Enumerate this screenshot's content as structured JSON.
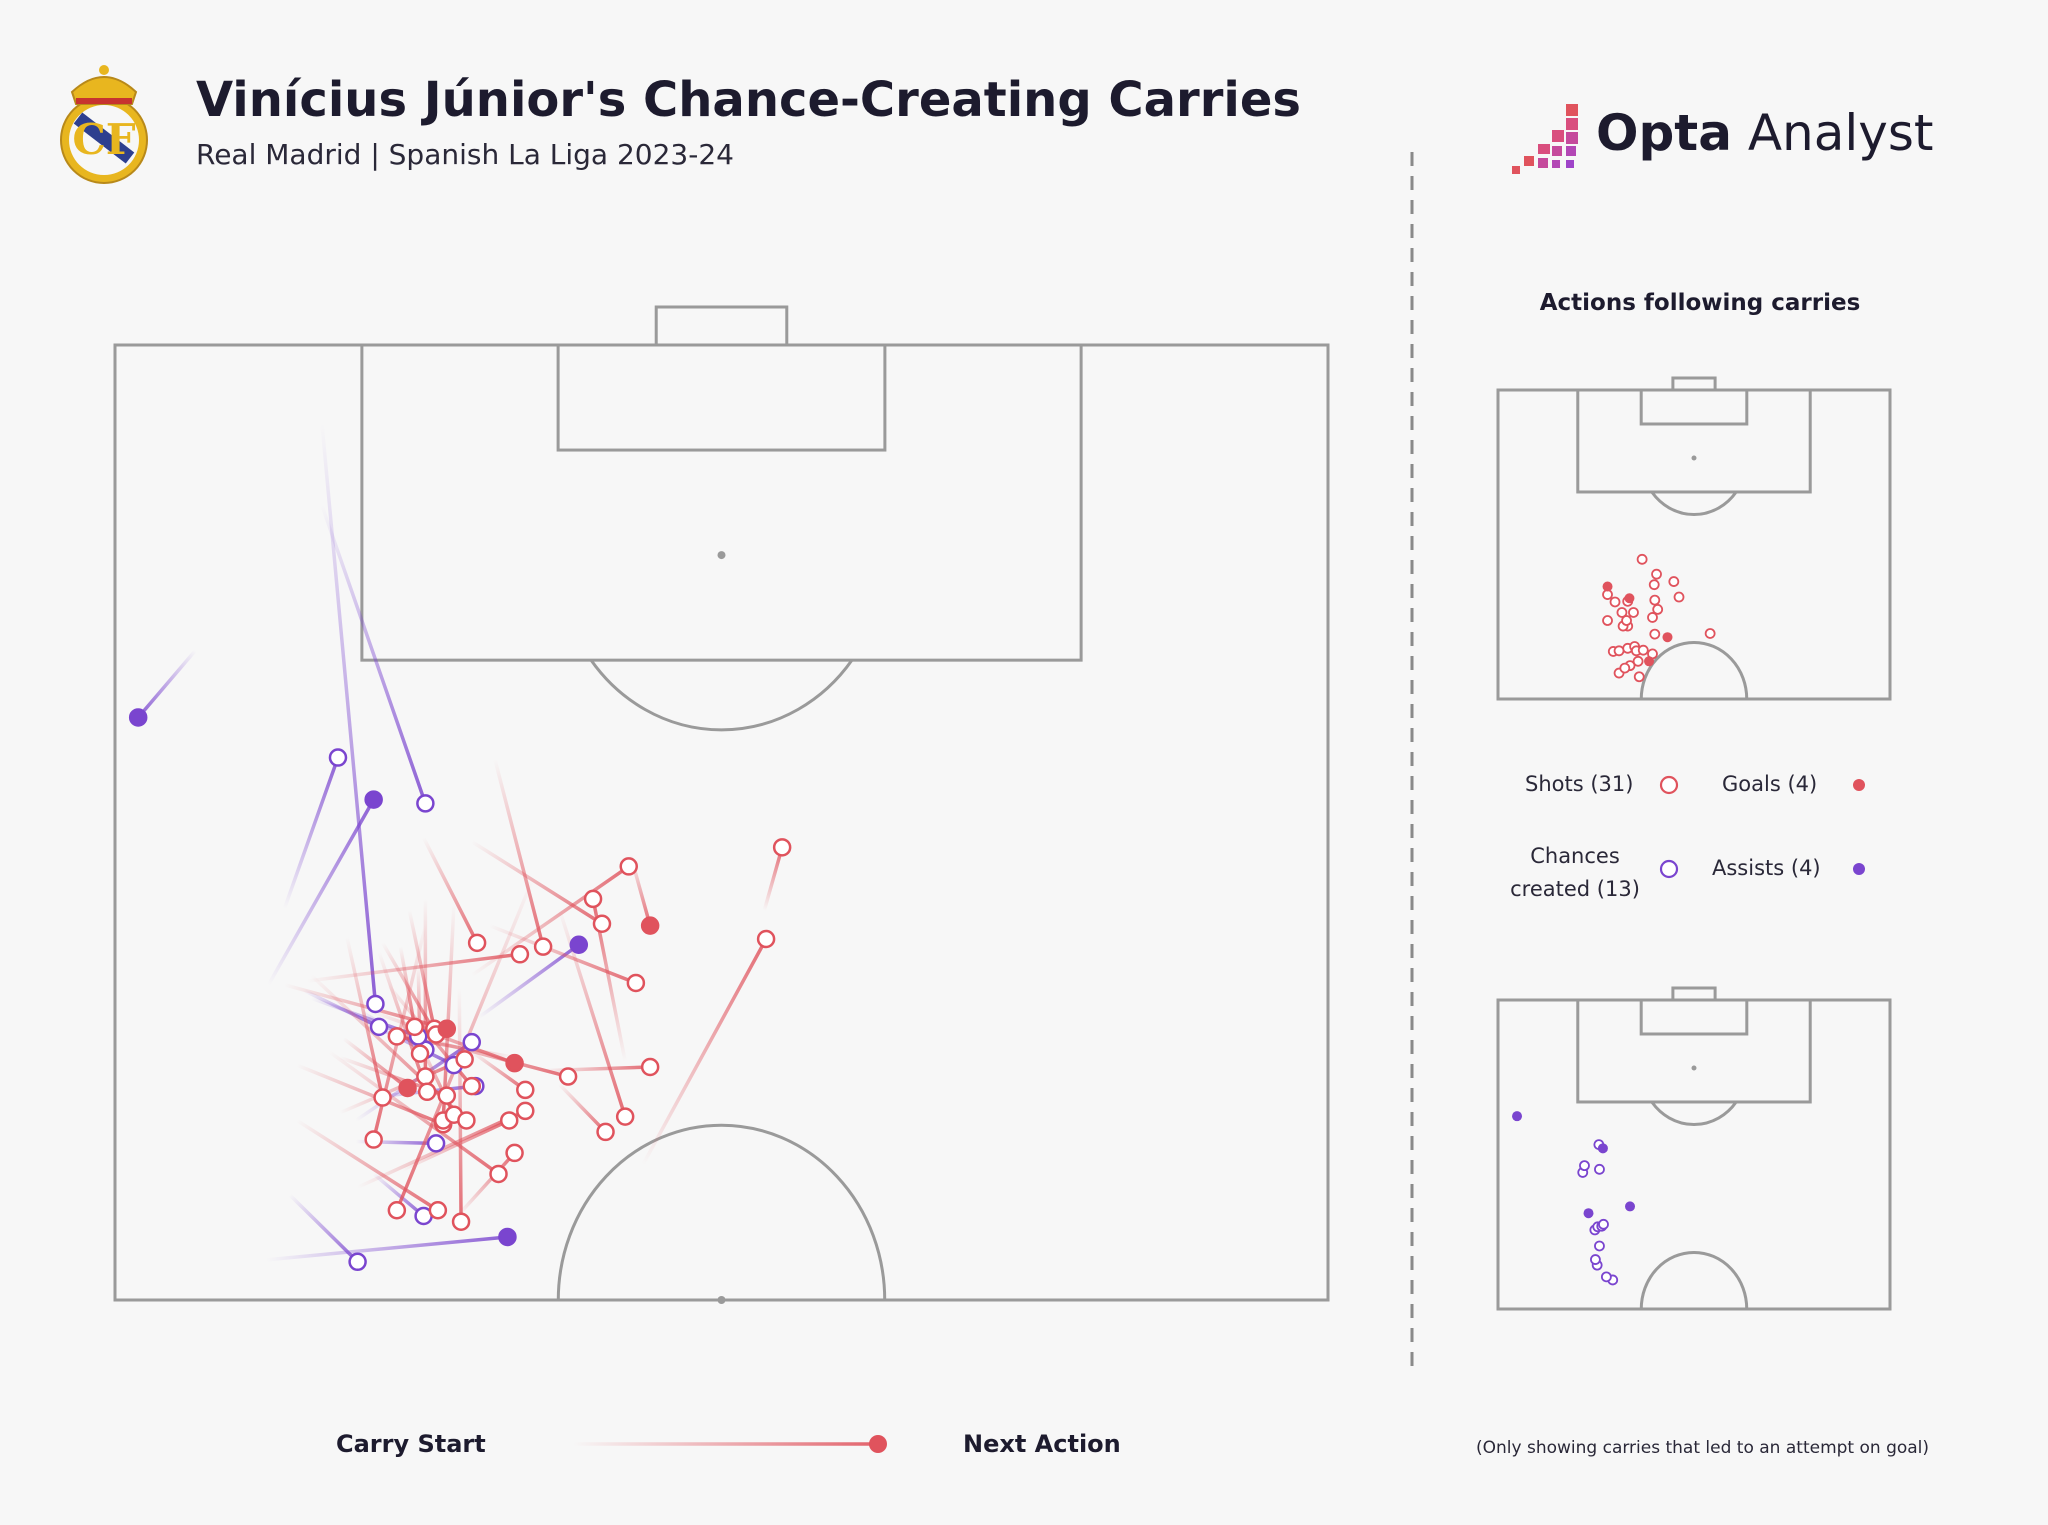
{
  "title": "Vinícius Júnior's Chance-Creating Carries",
  "subtitle": "Real Madrid | Spanish La Liga 2023-24",
  "brand": {
    "opta": "Opta",
    "analyst": "Analyst"
  },
  "colors": {
    "shot": "#e0535d",
    "assist": "#7a45cf",
    "pitch_line": "#9a9a9a",
    "background": "#f7f7f7"
  },
  "side": {
    "title": "Actions following carries",
    "legend": {
      "shots": "Shots (31)",
      "goals": "Goals (4)",
      "chances": "Chances created (13)",
      "assists": "Assists (4)"
    }
  },
  "legend": {
    "carry_start": "Carry Start",
    "next_action": "Next Action"
  },
  "footnote": "(Only showing carries that led to an attempt on goal)",
  "chart_data": {
    "type": "scatter",
    "pitch": {
      "length": 50,
      "width": 68,
      "attacking": "up"
    },
    "carries": [
      {
        "type": "assist",
        "sx": 8.6,
        "sy": 33.5,
        "ex": 14.5,
        "ey": 23.8
      },
      {
        "type": "assist",
        "sx": 11.6,
        "sy": 4.1,
        "ex": 14.6,
        "ey": 34.5
      },
      {
        "type": "assist",
        "sx": 11.6,
        "sy": 8.4,
        "ex": 17.4,
        "ey": 24.0
      },
      {
        "type": "assist",
        "sx": 9.8,
        "sy": 44.5,
        "ex": 13.6,
        "ey": 48.0
      },
      {
        "type": "assist",
        "sx": 20.4,
        "sy": 35.2,
        "ex": 26.0,
        "ey": 31.4
      },
      {
        "type": "assist",
        "sx": 4.5,
        "sy": 16.0,
        "ex": 1.3,
        "ey": 19.5
      },
      {
        "type": "assist",
        "sx": 13.8,
        "sy": 34.9,
        "ex": 17.4,
        "ey": 36.9
      },
      {
        "type": "assist",
        "sx": 8.5,
        "sy": 47.9,
        "ex": 22.0,
        "ey": 46.7
      },
      {
        "type": "assist",
        "sx": 13.5,
        "sy": 40.6,
        "ex": 20.0,
        "ey": 36.5
      },
      {
        "type": "assist",
        "sx": 14.3,
        "sy": 39.4,
        "ex": 20.2,
        "ey": 38.8
      },
      {
        "type": "assist",
        "sx": 13.5,
        "sy": 41.7,
        "ex": 18.0,
        "ey": 41.8
      },
      {
        "type": "assist",
        "sx": 14.0,
        "sy": 35.4,
        "ex": 19.0,
        "ey": 37.7
      },
      {
        "type": "assist",
        "sx": 14.5,
        "sy": 43.4,
        "ex": 17.3,
        "ey": 45.6
      },
      {
        "type": "assist",
        "sx": 9.5,
        "sy": 29.5,
        "ex": 12.5,
        "ey": 21.6
      },
      {
        "type": "assist",
        "sx": 10.6,
        "sy": 33.8,
        "ex": 14.8,
        "ey": 35.7
      },
      {
        "type": "assist",
        "sx": 11.0,
        "sy": 34.2,
        "ex": 17.0,
        "ey": 36.2
      },
      {
        "type": "shot",
        "sx": 16.1,
        "sy": 43.2,
        "ex": 22.1,
        "ey": 40.6
      },
      {
        "type": "shot",
        "sx": 20.0,
        "sy": 37.0,
        "ex": 23.0,
        "ey": 39.0
      },
      {
        "type": "shot",
        "sx": 29.6,
        "sy": 42.9,
        "ex": 36.5,
        "ey": 31.1
      },
      {
        "type": "shot",
        "sx": 28.6,
        "sy": 37.5,
        "ex": 26.8,
        "ey": 29.0
      },
      {
        "type": "shot",
        "sx": 36.4,
        "sy": 29.6,
        "ex": 37.4,
        "ey": 26.3
      },
      {
        "type": "shot",
        "sx": 24.9,
        "sy": 29.5,
        "ex": 28.6,
        "ey": 40.4
      },
      {
        "type": "shot",
        "sx": 13.6,
        "sy": 44.1,
        "ex": 23.0,
        "ey": 40.1
      },
      {
        "type": "shot",
        "sx": 19.3,
        "sy": 45.5,
        "ex": 22.4,
        "ey": 42.3
      },
      {
        "type": "shot",
        "sx": 10.2,
        "sy": 37.7,
        "ex": 18.4,
        "ey": 40.8
      },
      {
        "type": "shot",
        "sx": 10.2,
        "sy": 40.6,
        "ex": 18.1,
        "ey": 45.3
      },
      {
        "type": "shot",
        "sx": 23.4,
        "sy": 28.0,
        "ex": 15.8,
        "ey": 45.3
      },
      {
        "type": "shot",
        "sx": 23.9,
        "sy": 38.0,
        "ex": 30.0,
        "ey": 37.8
      },
      {
        "type": "shot",
        "sx": 22.4,
        "sy": 37.3,
        "ex": 15.8,
        "ey": 36.2
      },
      {
        "type": "shot",
        "sx": 16.5,
        "sy": 29.6,
        "ex": 17.9,
        "ey": 35.8
      },
      {
        "type": "shot",
        "sx": 17.4,
        "sy": 29.0,
        "ex": 17.4,
        "ey": 38.3
      },
      {
        "type": "shot",
        "sx": 19.0,
        "sy": 29.3,
        "ex": 18.4,
        "ey": 40.6
      },
      {
        "type": "shot",
        "sx": 17.0,
        "sy": 32.5,
        "ex": 17.1,
        "ey": 37.1
      },
      {
        "type": "shot",
        "sx": 15.0,
        "sy": 31.3,
        "ex": 18.0,
        "ey": 36.1
      },
      {
        "type": "shot",
        "sx": 17.0,
        "sy": 36.4,
        "ex": 19.0,
        "ey": 40.3
      },
      {
        "type": "shot",
        "sx": 16.0,
        "sy": 31.5,
        "ex": 16.8,
        "ey": 35.7
      },
      {
        "type": "shot",
        "sx": 11.0,
        "sy": 33.0,
        "ex": 19.7,
        "ey": 40.6
      },
      {
        "type": "shot",
        "sx": 12.6,
        "sy": 40.2,
        "ex": 19.6,
        "ey": 37.4
      },
      {
        "type": "shot",
        "sx": 19.3,
        "sy": 33.7,
        "ex": 19.4,
        "ey": 45.9
      },
      {
        "type": "shot",
        "sx": 17.4,
        "sy": 30.4,
        "ex": 14.5,
        "ey": 41.6
      },
      {
        "type": "shot",
        "sx": 15.3,
        "sy": 33.5,
        "ex": 20.0,
        "ey": 38.8
      },
      {
        "type": "shot",
        "sx": 13.0,
        "sy": 31.0,
        "ex": 15.0,
        "ey": 39.4
      },
      {
        "type": "shot",
        "sx": 12.0,
        "sy": 37.0,
        "ex": 21.5,
        "ey": 43.4
      },
      {
        "type": "shot",
        "sx": 16.0,
        "sy": 36.0,
        "ex": 25.4,
        "ey": 38.3
      },
      {
        "type": "shot",
        "sx": 20.0,
        "sy": 33.0,
        "ex": 28.8,
        "ey": 27.3
      },
      {
        "type": "shot",
        "sx": 21.3,
        "sy": 21.7,
        "ex": 24.0,
        "ey": 31.5
      },
      {
        "type": "shot",
        "sx": 24.9,
        "sy": 38.7,
        "ex": 27.5,
        "ey": 41.2
      },
      {
        "type": "shot",
        "sx": 14.8,
        "sy": 31.8,
        "ex": 17.5,
        "ey": 39.1
      },
      {
        "type": "shot",
        "sx": 12.6,
        "sy": 37.3,
        "ex": 18.6,
        "ey": 39.3
      },
      {
        "type": "shot",
        "sx": 20.0,
        "sy": 26.0,
        "ex": 27.3,
        "ey": 30.3
      },
      {
        "type": "shot",
        "sx": 10.8,
        "sy": 33.3,
        "ex": 22.7,
        "ey": 31.9
      },
      {
        "type": "shot",
        "sx": 17.3,
        "sy": 25.8,
        "ex": 20.3,
        "ey": 31.3
      },
      {
        "type": "shot",
        "sx": 21.0,
        "sy": 30.4,
        "ex": 29.2,
        "ey": 33.4
      },
      {
        "type": "goal",
        "sx": 28.9,
        "sy": 26.7,
        "ex": 30.0,
        "ey": 30.4
      },
      {
        "type": "goal",
        "sx": 14.4,
        "sy": 34.9,
        "ex": 22.4,
        "ey": 37.6
      },
      {
        "type": "goal",
        "sx": 12.8,
        "sy": 36.3,
        "ex": 16.4,
        "ey": 38.9
      },
      {
        "type": "goal",
        "sx": 9.5,
        "sy": 33.5,
        "ex": 18.6,
        "ey": 35.8
      }
    ],
    "shots_end": [
      [
        21.0,
        45.8
      ],
      [
        24.5,
        46.4
      ],
      [
        22.9,
        44.6
      ],
      [
        22.0,
        45.0
      ],
      [
        24.3,
        43.9
      ],
      [
        20.0,
        42.3
      ],
      [
        21.0,
        42.2
      ],
      [
        22.5,
        41.8
      ],
      [
        23.7,
        41.5
      ],
      [
        24.0,
        42.2
      ],
      [
        25.2,
        42.1
      ],
      [
        26.8,
        42.7
      ],
      [
        27.2,
        39.5
      ],
      [
        22.5,
        38.2
      ],
      [
        21.7,
        38.2
      ],
      [
        19.0,
        37.3
      ],
      [
        22.3,
        37.3
      ],
      [
        21.5,
        36.0
      ],
      [
        23.5,
        36.0
      ],
      [
        27.7,
        35.5
      ],
      [
        26.8,
        36.8
      ],
      [
        20.3,
        34.3
      ],
      [
        22.5,
        34.2
      ],
      [
        19.0,
        33.1
      ],
      [
        27.2,
        34.0
      ],
      [
        31.4,
        33.5
      ],
      [
        36.8,
        39.4
      ],
      [
        27.1,
        31.5
      ],
      [
        30.5,
        31.0
      ],
      [
        27.5,
        29.8
      ],
      [
        25.0,
        27.4
      ]
    ],
    "goals_end": [
      [
        26.2,
        43.9
      ],
      [
        29.4,
        40.0
      ],
      [
        22.8,
        33.7
      ],
      [
        19.0,
        31.8
      ]
    ],
    "chances_end": [
      [
        19.9,
        45.3
      ],
      [
        18.8,
        44.8
      ],
      [
        17.2,
        42.9
      ],
      [
        16.9,
        42.0
      ],
      [
        17.6,
        39.8
      ],
      [
        16.8,
        37.2
      ],
      [
        17.3,
        36.7
      ],
      [
        18.0,
        36.6
      ],
      [
        18.3,
        36.3
      ],
      [
        14.7,
        27.9
      ],
      [
        17.6,
        27.4
      ],
      [
        15.0,
        26.8
      ],
      [
        17.5,
        23.4
      ]
    ],
    "assists_end": [
      [
        15.7,
        34.5
      ],
      [
        22.9,
        33.4
      ],
      [
        18.2,
        24.0
      ],
      [
        3.3,
        18.8
      ]
    ]
  }
}
